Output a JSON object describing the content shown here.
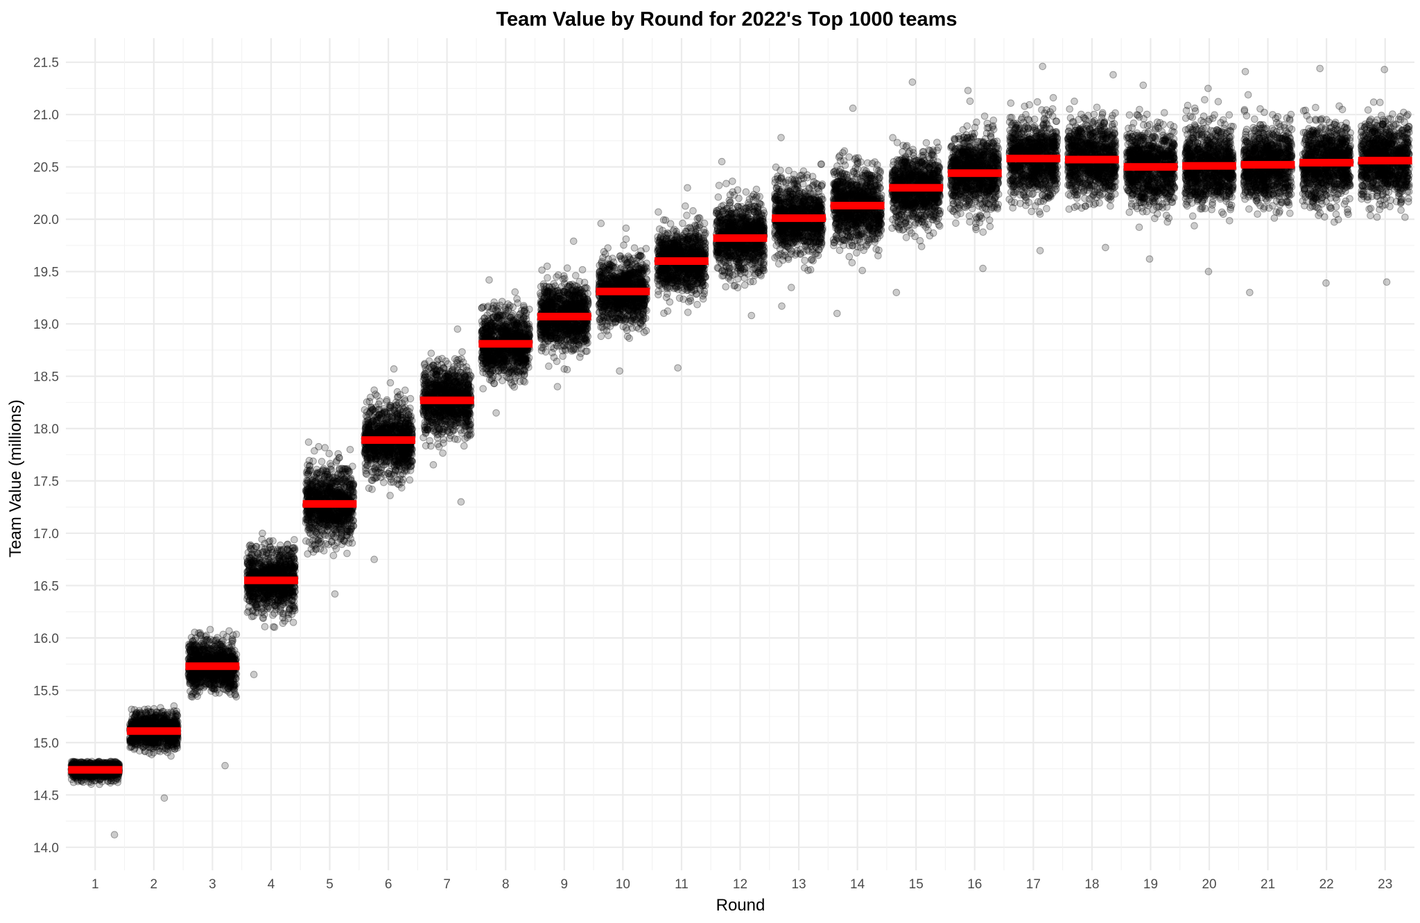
{
  "chart_data": {
    "type": "scatter",
    "title": "Team Value by Round for 2022's Top 1000 teams",
    "xlabel": "Round",
    "ylabel": "Team Value (millions)",
    "categories": [
      "1",
      "2",
      "3",
      "4",
      "5",
      "6",
      "7",
      "8",
      "9",
      "10",
      "11",
      "12",
      "13",
      "14",
      "15",
      "16",
      "17",
      "18",
      "19",
      "20",
      "21",
      "22",
      "23"
    ],
    "yticks": [
      "14.0",
      "14.5",
      "15.0",
      "15.5",
      "16.0",
      "16.5",
      "17.0",
      "17.5",
      "18.0",
      "18.5",
      "19.0",
      "19.5",
      "20.0",
      "20.5",
      "21.0",
      "21.5"
    ],
    "ylim": [
      13.78,
      21.73
    ],
    "grid": true,
    "legend": "none",
    "points_per_round": 1000,
    "series": [
      {
        "kind": "jittered points",
        "color": "#000000",
        "opacity": 0.2,
        "spread": [
          0.08,
          0.15,
          0.22,
          0.27,
          0.3,
          0.3,
          0.3,
          0.29,
          0.29,
          0.28,
          0.29,
          0.3,
          0.3,
          0.31,
          0.31,
          0.32,
          0.32,
          0.32,
          0.32,
          0.33,
          0.33,
          0.33,
          0.33
        ],
        "min": [
          14.12,
          14.47,
          14.78,
          15.65,
          16.42,
          16.75,
          17.3,
          18.15,
          18.4,
          18.55,
          18.58,
          19.08,
          19.17,
          19.1,
          19.3,
          19.53,
          19.7,
          19.73,
          19.62,
          19.5,
          19.3,
          19.39,
          19.4
        ],
        "max": [
          14.82,
          15.35,
          16.08,
          17.0,
          17.87,
          18.57,
          18.95,
          19.42,
          19.79,
          19.96,
          20.3,
          20.55,
          20.78,
          21.06,
          21.31,
          21.23,
          21.46,
          21.38,
          21.28,
          21.25,
          21.41,
          21.44,
          21.43
        ]
      },
      {
        "kind": "mean bars",
        "color": "#ff0000",
        "values": [
          14.74,
          15.11,
          15.73,
          16.55,
          17.28,
          17.89,
          18.27,
          18.81,
          19.07,
          19.31,
          19.6,
          19.82,
          20.01,
          20.13,
          20.3,
          20.44,
          20.58,
          20.57,
          20.5,
          20.51,
          20.52,
          20.54,
          20.56
        ]
      }
    ]
  }
}
